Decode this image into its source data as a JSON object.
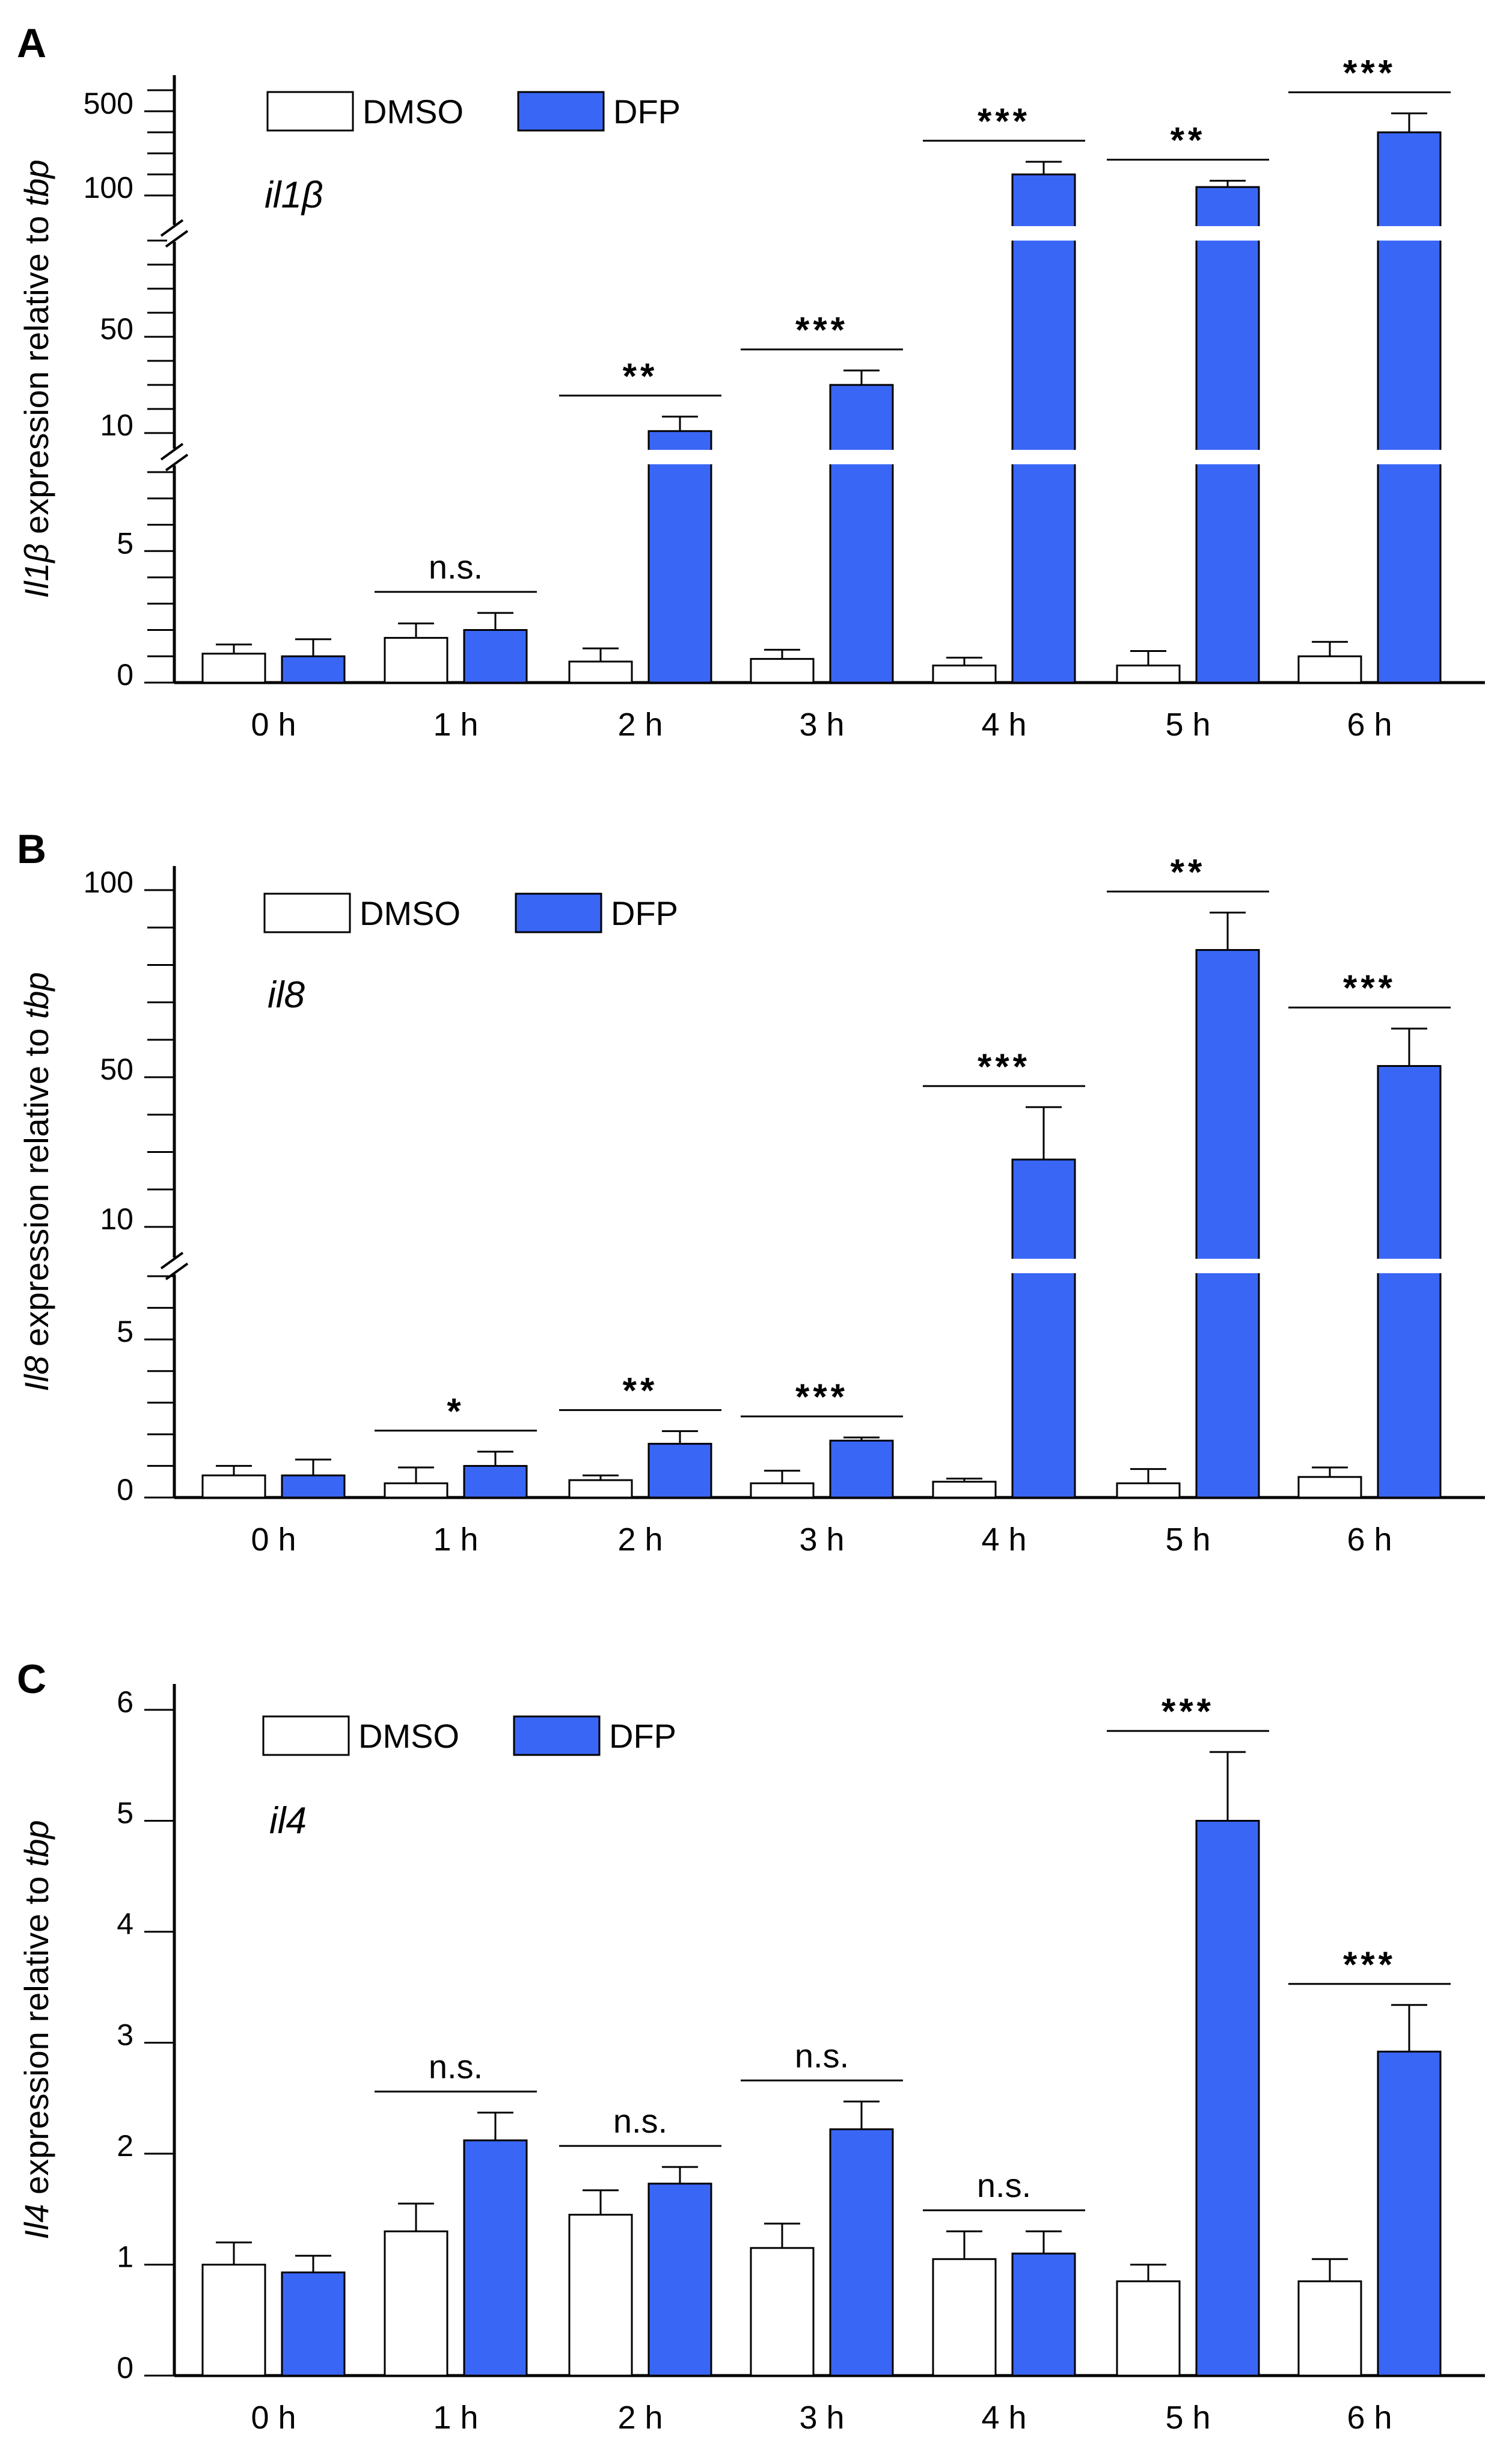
{
  "colors": {
    "dmso_fill": "#ffffff",
    "dfp_fill": "#3a66f5",
    "stroke": "#000000"
  },
  "chart_data": [
    {
      "panel": "A",
      "type": "bar",
      "gene_label": "il1β",
      "ylabel": {
        "italic_part": "Il1β",
        "rest": " expression relative to ",
        "italic_suffix": "tbp"
      },
      "categories": [
        "0 h",
        "1 h",
        "2 h",
        "3 h",
        "4 h",
        "5 h",
        "6 h"
      ],
      "legend": [
        "DMSO",
        "DFP"
      ],
      "series": [
        {
          "name": "DMSO",
          "values": [
            1.1,
            1.7,
            0.8,
            0.9,
            0.65,
            0.65,
            1.0
          ],
          "errors": [
            0.35,
            0.55,
            0.5,
            0.35,
            0.3,
            0.55,
            0.55
          ]
        },
        {
          "name": "DFP",
          "values": [
            1.0,
            2.0,
            10.8,
            30,
            200,
            140,
            400
          ],
          "errors": [
            0.65,
            0.65,
            6,
            6,
            60,
            30,
            90
          ]
        }
      ],
      "significance": [
        "",
        "n.s.",
        "**",
        "***",
        "***",
        "**",
        "***"
      ],
      "y_axis_segments": [
        {
          "range": [
            0,
            8
          ],
          "ticks": [
            0,
            5
          ],
          "minor_step": 1
        },
        {
          "range": [
            10,
            90
          ],
          "ticks": [
            10,
            50
          ],
          "minor_step": 10
        },
        {
          "range": [
            100,
            600
          ],
          "ticks": [
            100,
            500
          ],
          "minor_step": 100
        }
      ]
    },
    {
      "panel": "B",
      "type": "bar",
      "gene_label": "il8",
      "ylabel": {
        "italic_part": "Il8",
        "rest": " expression relative to ",
        "italic_suffix": "tbp"
      },
      "categories": [
        "0 h",
        "1 h",
        "2 h",
        "3 h",
        "4 h",
        "5 h",
        "6 h"
      ],
      "legend": [
        "DMSO",
        "DFP"
      ],
      "series": [
        {
          "name": "DMSO",
          "values": [
            0.7,
            0.45,
            0.55,
            0.45,
            0.5,
            0.45,
            0.65
          ],
          "errors": [
            0.3,
            0.5,
            0.15,
            0.4,
            0.1,
            0.45,
            0.3
          ]
        },
        {
          "name": "DFP",
          "values": [
            0.7,
            1.0,
            1.7,
            1.8,
            28,
            84,
            53
          ],
          "errors": [
            0.5,
            0.45,
            0.4,
            0.1,
            14,
            10,
            10
          ]
        }
      ],
      "significance": [
        "",
        "*",
        "**",
        "***",
        "***",
        "**",
        "***"
      ],
      "y_axis_segments": [
        {
          "range": [
            0,
            7
          ],
          "ticks": [
            0,
            5
          ],
          "minor_step": 1
        },
        {
          "range": [
            10,
            100
          ],
          "ticks": [
            10,
            50,
            100
          ],
          "minor_step": 10
        }
      ]
    },
    {
      "panel": "C",
      "type": "bar",
      "gene_label": "il4",
      "ylabel": {
        "italic_part": "Il4",
        "rest": " expression relative to ",
        "italic_suffix": "tbp"
      },
      "categories": [
        "0 h",
        "1 h",
        "2 h",
        "3 h",
        "4 h",
        "5 h",
        "6 h"
      ],
      "legend": [
        "DMSO",
        "DFP"
      ],
      "series": [
        {
          "name": "DMSO",
          "values": [
            1.0,
            1.3,
            1.45,
            1.15,
            1.05,
            0.85,
            0.85
          ],
          "errors": [
            0.2,
            0.25,
            0.22,
            0.22,
            0.25,
            0.15,
            0.2
          ]
        },
        {
          "name": "DFP",
          "values": [
            0.93,
            2.12,
            1.73,
            2.22,
            1.1,
            5.0,
            2.92
          ],
          "errors": [
            0.15,
            0.25,
            0.15,
            0.25,
            0.2,
            0.62,
            0.42
          ]
        }
      ],
      "significance": [
        "",
        "n.s.",
        "n.s.",
        "n.s.",
        "n.s.",
        "***",
        "***"
      ],
      "y_axis_segments": [
        {
          "range": [
            0,
            6
          ],
          "ticks": [
            0,
            1,
            2,
            3,
            4,
            5,
            6
          ],
          "minor_step": 1
        }
      ]
    }
  ]
}
